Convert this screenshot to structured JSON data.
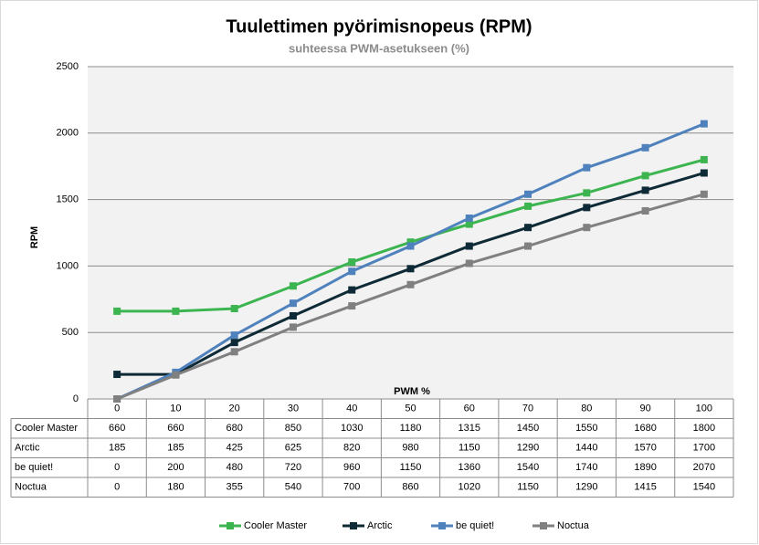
{
  "chart_data": {
    "type": "line",
    "title": "Tuulettimen pyörimisnopeus (RPM)",
    "subtitle": "suhteessa PWM-asetukseen (%)",
    "x_label": "PWM %",
    "y_label": "RPM",
    "categories": [
      "0",
      "10",
      "20",
      "30",
      "40",
      "50",
      "60",
      "70",
      "80",
      "90",
      "100"
    ],
    "series": [
      {
        "name": "Cooler Master",
        "color": "#3cb550",
        "values": [
          660,
          660,
          680,
          850,
          1030,
          1180,
          1315,
          1450,
          1550,
          1680,
          1800
        ]
      },
      {
        "name": "Arctic",
        "color": "#0e2a36",
        "values": [
          185,
          185,
          425,
          625,
          820,
          980,
          1150,
          1290,
          1440,
          1570,
          1700
        ]
      },
      {
        "name": "be quiet!",
        "color": "#4f81bd",
        "values": [
          0,
          200,
          480,
          720,
          960,
          1150,
          1360,
          1540,
          1740,
          1890,
          2070
        ]
      },
      {
        "name": "Noctua",
        "color": "#808080",
        "values": [
          0,
          180,
          355,
          540,
          700,
          860,
          1020,
          1150,
          1290,
          1415,
          1540
        ]
      }
    ],
    "ylim": [
      0,
      2500
    ],
    "yticks": [
      0,
      500,
      1000,
      1500,
      2000,
      2500
    ],
    "grid": true,
    "legend": "bottom"
  }
}
